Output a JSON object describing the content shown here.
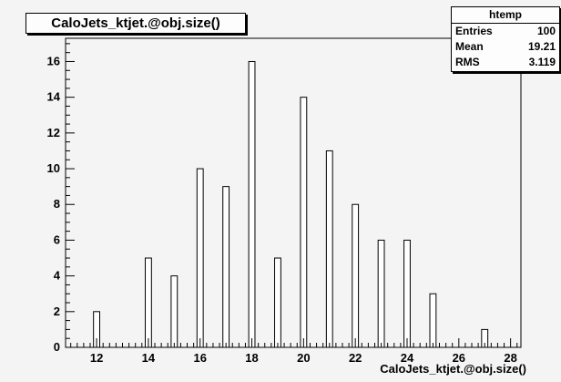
{
  "chart_data": {
    "type": "bar",
    "title": "CaloJets_ktjet.@obj.size()",
    "xlabel": "CaloJets_ktjet.@obj.size()",
    "ylabel": "",
    "xlim": [
      10.8,
      28.4
    ],
    "ylim": [
      0,
      17.3
    ],
    "xticks": [
      12,
      14,
      16,
      18,
      20,
      22,
      24,
      26,
      28
    ],
    "yticks": [
      0,
      2,
      4,
      6,
      8,
      10,
      12,
      14,
      16
    ],
    "bin_width": 0.24,
    "x": [
      12,
      14,
      15,
      16,
      17,
      18,
      19,
      20,
      21,
      22,
      23,
      24,
      25,
      27
    ],
    "values": [
      2,
      5,
      4,
      10,
      9,
      16,
      5,
      14,
      11,
      8,
      6,
      6,
      3,
      1
    ],
    "grid": false,
    "stats": {
      "name": "htemp",
      "entries_label": "Entries",
      "entries": "100",
      "mean_label": "Mean",
      "mean": "19.21",
      "rms_label": "RMS",
      "rms": "3.119"
    }
  }
}
